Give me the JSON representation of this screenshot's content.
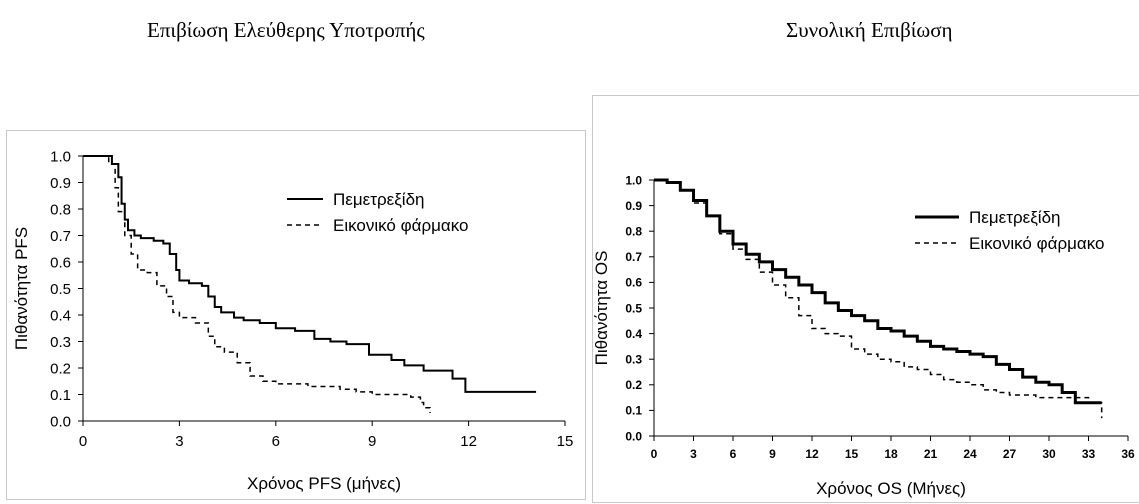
{
  "chart_data": [
    {
      "type": "line",
      "title": "Επιβίωση Ελεύθερης Υποτροπής",
      "xlabel": "Χρόνος PFS (μήνες)",
      "ylabel": "Πιθανότητα PFS",
      "xlim": [
        0,
        15
      ],
      "ylim": [
        0,
        1
      ],
      "x_ticks": [
        "0",
        "3",
        "6",
        "9",
        "12",
        "15"
      ],
      "y_ticks": [
        "0.0",
        "0.1",
        "0.2",
        "0.3",
        "0.4",
        "0.5",
        "0.6",
        "0.7",
        "0.8",
        "0.9",
        "1.0"
      ],
      "legend_position": "top-right",
      "grid": false,
      "series": [
        {
          "name": "Πεμετρεξίδη",
          "style": "solid",
          "x": [
            0,
            0.9,
            1.1,
            1.2,
            1.3,
            1.4,
            1.6,
            1.8,
            2.2,
            2.5,
            2.7,
            2.9,
            3.0,
            3.3,
            3.7,
            3.9,
            4.1,
            4.3,
            4.7,
            5.0,
            5.5,
            6.0,
            6.6,
            7.2,
            7.7,
            8.2,
            8.9,
            9.6,
            10.0,
            10.6,
            11.5,
            11.9,
            14.1
          ],
          "y": [
            1.0,
            0.97,
            0.92,
            0.82,
            0.76,
            0.72,
            0.7,
            0.69,
            0.68,
            0.67,
            0.63,
            0.57,
            0.53,
            0.52,
            0.51,
            0.47,
            0.43,
            0.41,
            0.39,
            0.38,
            0.37,
            0.35,
            0.34,
            0.31,
            0.3,
            0.29,
            0.25,
            0.23,
            0.21,
            0.19,
            0.16,
            0.11,
            0.11
          ]
        },
        {
          "name": "Εικονικό φάρμακο",
          "style": "dashed",
          "x": [
            0,
            0.8,
            1.0,
            1.1,
            1.3,
            1.5,
            1.7,
            2.0,
            2.3,
            2.6,
            2.8,
            3.0,
            3.5,
            3.9,
            4.1,
            4.4,
            4.8,
            5.2,
            5.6,
            6.0,
            6.5,
            7.0,
            8.0,
            8.5,
            9.0,
            10.2,
            10.5,
            10.6,
            10.8
          ],
          "y": [
            1.0,
            0.97,
            0.88,
            0.79,
            0.7,
            0.63,
            0.57,
            0.56,
            0.51,
            0.47,
            0.41,
            0.39,
            0.37,
            0.32,
            0.28,
            0.26,
            0.22,
            0.17,
            0.15,
            0.14,
            0.14,
            0.13,
            0.12,
            0.11,
            0.1,
            0.09,
            0.07,
            0.05,
            0.03
          ]
        }
      ]
    },
    {
      "type": "line",
      "title": "Συνολική Επιβίωση",
      "xlabel": "Χρόνος OS (Μήνες)",
      "ylabel": "Πιθανότητα OS",
      "xlim": [
        0,
        36
      ],
      "ylim": [
        0,
        1
      ],
      "x_ticks": [
        "0",
        "3",
        "6",
        "9",
        "12",
        "15",
        "18",
        "21",
        "24",
        "27",
        "30",
        "33",
        "36"
      ],
      "y_ticks": [
        "0.0",
        "0.1",
        "0.2",
        "0.3",
        "0.4",
        "0.5",
        "0.6",
        "0.7",
        "0.8",
        "0.9",
        "1.0"
      ],
      "legend_position": "top-right",
      "grid": false,
      "series": [
        {
          "name": "Πεμετρεξίδη",
          "style": "solid",
          "x": [
            0,
            1,
            2,
            3,
            4,
            5,
            6,
            7,
            8,
            9,
            10,
            11,
            12,
            13,
            14,
            15,
            16,
            17,
            18,
            19,
            20,
            21,
            22,
            23,
            24,
            25,
            26,
            27,
            28,
            29,
            30,
            31,
            32,
            33,
            34
          ],
          "y": [
            1.0,
            0.99,
            0.96,
            0.92,
            0.86,
            0.8,
            0.75,
            0.71,
            0.68,
            0.65,
            0.62,
            0.59,
            0.56,
            0.52,
            0.49,
            0.47,
            0.45,
            0.42,
            0.41,
            0.39,
            0.37,
            0.35,
            0.34,
            0.33,
            0.32,
            0.31,
            0.28,
            0.26,
            0.23,
            0.21,
            0.2,
            0.17,
            0.13,
            0.13,
            0.13
          ]
        },
        {
          "name": "Εικονικό φάρμακο",
          "style": "dashed",
          "x": [
            0,
            1,
            2,
            3,
            4,
            5,
            6,
            7,
            8,
            9,
            10,
            11,
            12,
            13,
            14,
            15,
            16,
            17,
            18,
            19,
            20,
            21,
            22,
            23,
            24,
            25,
            26,
            27,
            28,
            29,
            30,
            31,
            32,
            33,
            34
          ],
          "y": [
            1.0,
            0.99,
            0.96,
            0.91,
            0.86,
            0.79,
            0.73,
            0.69,
            0.64,
            0.59,
            0.54,
            0.47,
            0.42,
            0.4,
            0.39,
            0.34,
            0.32,
            0.3,
            0.29,
            0.27,
            0.26,
            0.24,
            0.22,
            0.21,
            0.2,
            0.18,
            0.17,
            0.16,
            0.16,
            0.15,
            0.15,
            0.15,
            0.15,
            0.13,
            0.07
          ]
        }
      ]
    }
  ]
}
